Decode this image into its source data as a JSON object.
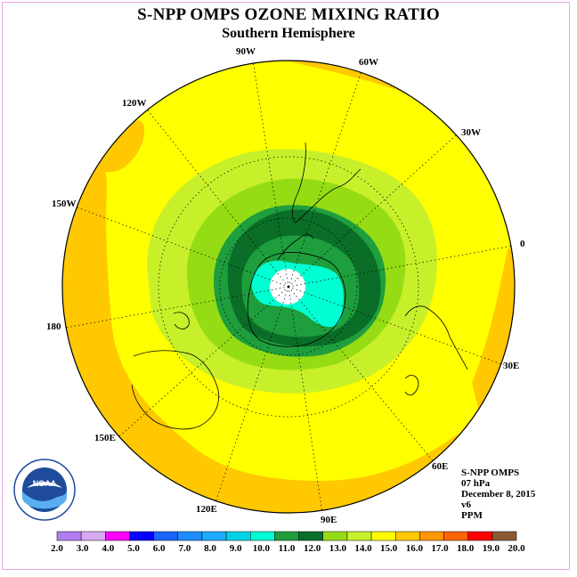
{
  "title": "S-NPP OMPS OZONE MIXING RATIO",
  "subtitle": "Southern Hemisphere",
  "longitude_labels": [
    "90W",
    "60W",
    "30W",
    "0",
    "30E",
    "60E",
    "90E",
    "120E",
    "150E",
    "180",
    "150W",
    "120W"
  ],
  "info": {
    "instrument": "S-NPP OMPS",
    "pressure": "07 hPa",
    "date": "December 8, 2015",
    "version": "v6",
    "units": "PPM"
  },
  "logo_text": "NOAA",
  "colorbar": {
    "labels": [
      "2.0",
      "3.0",
      "4.0",
      "5.0",
      "6.0",
      "7.0",
      "8.0",
      "9.0",
      "10.0",
      "11.0",
      "12.0",
      "13.0",
      "14.0",
      "15.0",
      "16.0",
      "17.0",
      "18.0",
      "19.0",
      "20.0"
    ],
    "colors": [
      "#b07cf0",
      "#d8a8f0",
      "#ff00ff",
      "#0000ff",
      "#1e64ff",
      "#1e8cff",
      "#1eaaff",
      "#00d2e6",
      "#00ffd2",
      "#1e9e3c",
      "#0a6e28",
      "#96dc14",
      "#c8f02a",
      "#ffff00",
      "#ffc800",
      "#ff9600",
      "#ff6400",
      "#ff0000",
      "#8c5a32"
    ]
  },
  "colors": {
    "map_yellow": "#ffff00",
    "map_orange": "#ffc800",
    "map_lightgreen": "#c8f02a",
    "map_green": "#96dc14",
    "map_midgreen": "#1e9e3c",
    "map_darkgreen": "#0a6e28",
    "map_aqua": "#00ffd2"
  }
}
